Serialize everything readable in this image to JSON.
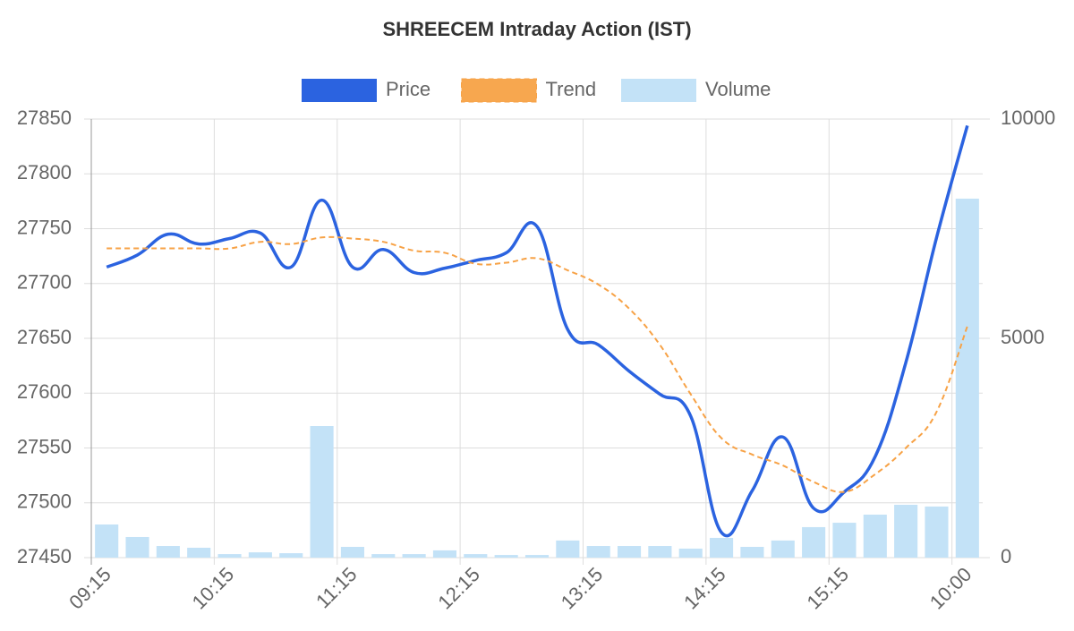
{
  "chart_data": {
    "type": "line",
    "title": "SHREECEM Intraday Action (IST)",
    "categories": [
      "09:15",
      null,
      null,
      null,
      "10:15",
      null,
      null,
      null,
      "11:15",
      null,
      null,
      null,
      "12:15",
      null,
      null,
      null,
      "13:15",
      null,
      null,
      null,
      "14:15",
      null,
      null,
      null,
      "15:15",
      null,
      null,
      null,
      "10:00"
    ],
    "series": [
      {
        "name": "Price",
        "color": "#2b63e0",
        "type": "line",
        "axis": "y",
        "values": [
          27715,
          27726,
          27745,
          27736,
          27741,
          27746,
          27715,
          27776,
          27715,
          27731,
          27710,
          27714,
          27721,
          27728,
          27752,
          27658,
          27644,
          27620,
          27599,
          27579,
          27473,
          27511,
          27560,
          27495,
          27510,
          27542,
          27628,
          27742,
          27844
        ]
      },
      {
        "name": "Trend",
        "color": "#f7a246",
        "type": "line",
        "dashed": true,
        "axis": "y",
        "values": [
          27732,
          27732,
          27732,
          27732,
          27732,
          27738,
          27736,
          27742,
          27741,
          27738,
          27730,
          27728,
          27718,
          27719,
          27723,
          27712,
          27699,
          27677,
          27644,
          27599,
          27559,
          27544,
          27534,
          27519,
          27510,
          27526,
          27550,
          27583,
          27661
        ]
      },
      {
        "name": "Volume",
        "color": "#c3e2f7",
        "type": "bar",
        "axis": "y2",
        "values": [
          755,
          470,
          265,
          225,
          80,
          120,
          100,
          3000,
          245,
          80,
          80,
          165,
          80,
          60,
          60,
          390,
          265,
          265,
          265,
          205,
          450,
          245,
          390,
          695,
          795,
          980,
          1205,
          1165,
          8185
        ]
      }
    ],
    "ylim": [
      27450,
      27850
    ],
    "yticks": [
      27450,
      27500,
      27550,
      27600,
      27650,
      27700,
      27750,
      27800,
      27850
    ],
    "y2lim": [
      0,
      10000
    ],
    "y2ticks": [
      0,
      5000,
      10000
    ],
    "grid": true,
    "legend": "top"
  }
}
